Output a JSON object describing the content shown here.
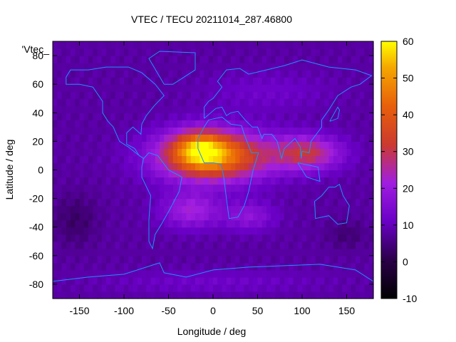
{
  "chart_data": {
    "type": "heatmap",
    "title": "VTEC / TECU 20211014_287.46800",
    "xlabel": "Longitude / deg",
    "ylabel": "Latitude / deg",
    "legend_key": "'Vtec_",
    "xlim": [
      -180,
      180
    ],
    "ylim": [
      -90,
      90
    ],
    "xticks": [
      -150,
      -100,
      -50,
      0,
      50,
      100,
      150
    ],
    "yticks": [
      -80,
      -60,
      -40,
      -20,
      0,
      20,
      40,
      60,
      80
    ],
    "colorbar": {
      "min": -10,
      "max": 60,
      "ticks": [
        -10,
        0,
        10,
        20,
        30,
        40,
        50,
        60
      ]
    },
    "background_value": 8,
    "anomalies": [
      {
        "lon": 0,
        "lat": 10,
        "sx": 60,
        "sy": 17,
        "value": 40
      },
      {
        "lon": -15,
        "lat": 15,
        "sx": 28,
        "sy": 12,
        "value": 22
      },
      {
        "lon": 105,
        "lat": 12,
        "sx": 38,
        "sy": 12,
        "value": 22
      },
      {
        "lon": -25,
        "lat": -28,
        "sx": 32,
        "sy": 12,
        "value": 14
      },
      {
        "lon": 40,
        "lat": -32,
        "sx": 28,
        "sy": 10,
        "value": 10
      },
      {
        "lon": -155,
        "lat": -35,
        "sx": 25,
        "sy": 18,
        "value": -5
      },
      {
        "lon": 150,
        "lat": -45,
        "sx": 22,
        "sy": 10,
        "value": -4
      },
      {
        "lon": 60,
        "lat": 55,
        "sx": 70,
        "sy": 14,
        "value": 4
      },
      {
        "lon": 0,
        "lat": -78,
        "sx": 120,
        "sy": 8,
        "value": 4
      }
    ]
  }
}
